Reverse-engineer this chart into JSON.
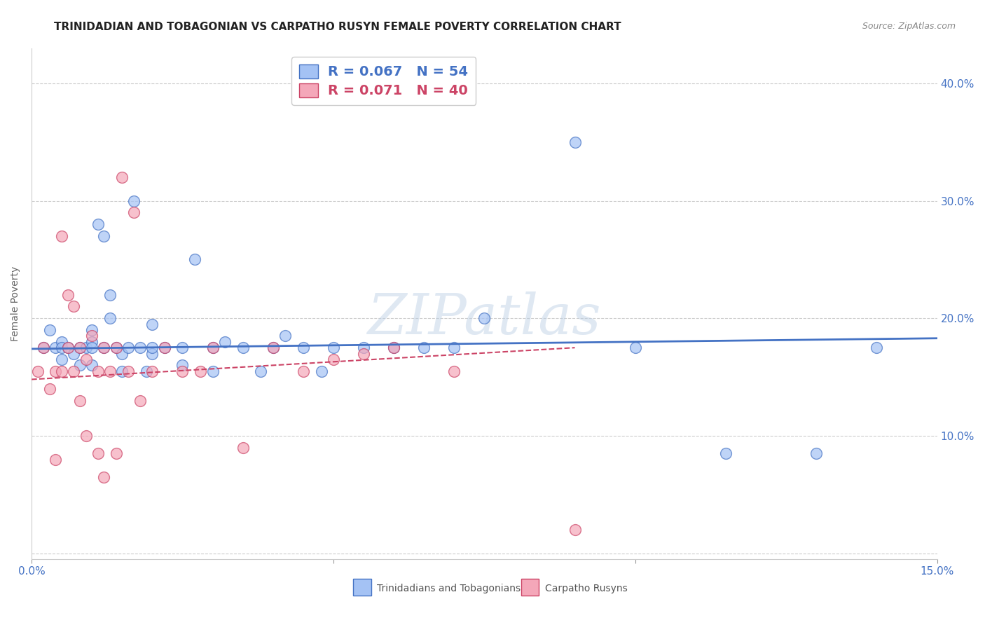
{
  "title": "TRINIDADIAN AND TOBAGONIAN VS CARPATHO RUSYN FEMALE POVERTY CORRELATION CHART",
  "source": "Source: ZipAtlas.com",
  "ylabel": "Female Poverty",
  "xlim": [
    0.0,
    0.15
  ],
  "ylim": [
    -0.005,
    0.43
  ],
  "blue_R": 0.067,
  "blue_N": 54,
  "pink_R": 0.071,
  "pink_N": 40,
  "blue_color": "#a4c2f4",
  "pink_color": "#f4a7b9",
  "blue_line_color": "#4472c4",
  "pink_line_color": "#cc4466",
  "legend_label_blue": "Trinidadians and Tobagonians",
  "legend_label_pink": "Carpatho Rusyns",
  "watermark_text": "ZIPatlas",
  "blue_scatter_x": [
    0.002,
    0.003,
    0.004,
    0.005,
    0.005,
    0.005,
    0.006,
    0.007,
    0.008,
    0.008,
    0.009,
    0.01,
    0.01,
    0.01,
    0.01,
    0.011,
    0.012,
    0.012,
    0.013,
    0.013,
    0.014,
    0.015,
    0.015,
    0.016,
    0.017,
    0.018,
    0.019,
    0.02,
    0.02,
    0.02,
    0.022,
    0.025,
    0.025,
    0.027,
    0.03,
    0.03,
    0.032,
    0.035,
    0.038,
    0.04,
    0.042,
    0.045,
    0.048,
    0.05,
    0.055,
    0.06,
    0.065,
    0.07,
    0.075,
    0.09,
    0.1,
    0.115,
    0.13,
    0.14
  ],
  "blue_scatter_y": [
    0.175,
    0.19,
    0.175,
    0.18,
    0.175,
    0.165,
    0.175,
    0.17,
    0.175,
    0.16,
    0.175,
    0.19,
    0.18,
    0.175,
    0.16,
    0.28,
    0.27,
    0.175,
    0.22,
    0.2,
    0.175,
    0.17,
    0.155,
    0.175,
    0.3,
    0.175,
    0.155,
    0.195,
    0.17,
    0.175,
    0.175,
    0.175,
    0.16,
    0.25,
    0.175,
    0.155,
    0.18,
    0.175,
    0.155,
    0.175,
    0.185,
    0.175,
    0.155,
    0.175,
    0.175,
    0.175,
    0.175,
    0.175,
    0.2,
    0.35,
    0.175,
    0.085,
    0.085,
    0.175
  ],
  "pink_scatter_x": [
    0.001,
    0.002,
    0.003,
    0.004,
    0.004,
    0.005,
    0.005,
    0.006,
    0.006,
    0.007,
    0.007,
    0.008,
    0.008,
    0.009,
    0.009,
    0.01,
    0.011,
    0.011,
    0.012,
    0.012,
    0.013,
    0.014,
    0.014,
    0.015,
    0.016,
    0.017,
    0.018,
    0.02,
    0.022,
    0.025,
    0.028,
    0.03,
    0.035,
    0.04,
    0.045,
    0.05,
    0.055,
    0.06,
    0.07,
    0.09
  ],
  "pink_scatter_y": [
    0.155,
    0.175,
    0.14,
    0.155,
    0.08,
    0.27,
    0.155,
    0.22,
    0.175,
    0.21,
    0.155,
    0.175,
    0.13,
    0.165,
    0.1,
    0.185,
    0.155,
    0.085,
    0.175,
    0.065,
    0.155,
    0.175,
    0.085,
    0.32,
    0.155,
    0.29,
    0.13,
    0.155,
    0.175,
    0.155,
    0.155,
    0.175,
    0.09,
    0.175,
    0.155,
    0.165,
    0.17,
    0.175,
    0.155,
    0.02
  ],
  "blue_trend_x": [
    0.0,
    0.15
  ],
  "blue_trend_y": [
    0.174,
    0.183
  ],
  "pink_trend_x": [
    0.0,
    0.09
  ],
  "pink_trend_y": [
    0.148,
    0.175
  ],
  "background_color": "#ffffff",
  "grid_color": "#cccccc",
  "title_fontsize": 11,
  "axis_label_fontsize": 10,
  "tick_label_color": "#4472c4",
  "tick_label_fontsize": 11,
  "yticks": [
    0.0,
    0.1,
    0.2,
    0.3,
    0.4
  ],
  "ytick_labels": [
    "",
    "10.0%",
    "20.0%",
    "30.0%",
    "40.0%"
  ]
}
